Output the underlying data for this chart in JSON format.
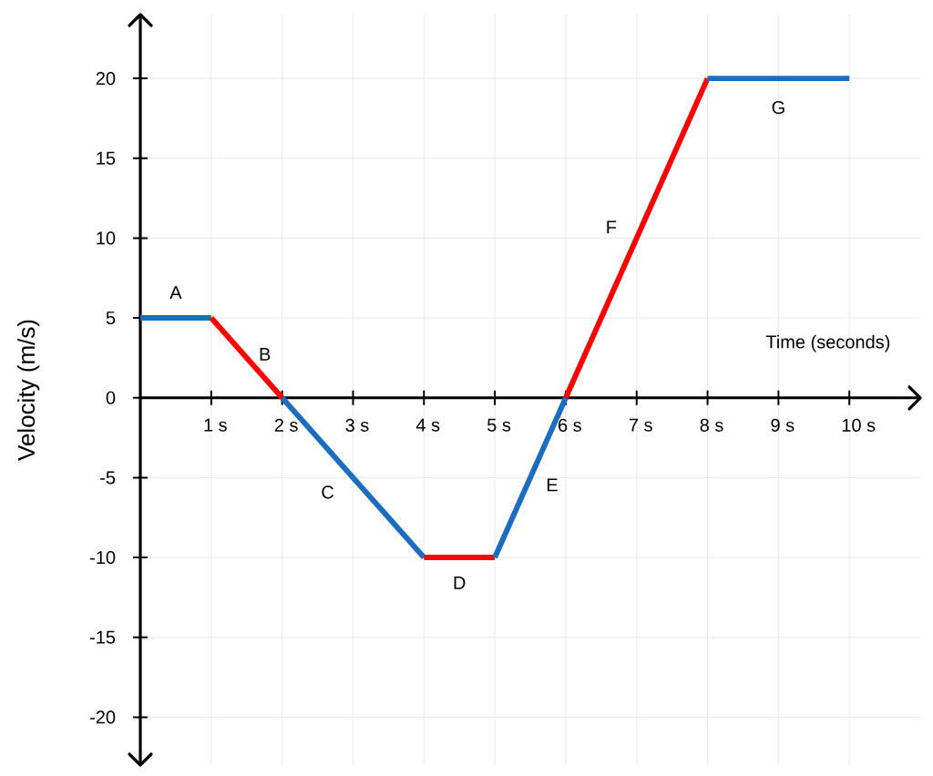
{
  "chart_data": {
    "type": "line",
    "xlabel": "Time (seconds)",
    "ylabel": "Velocity (m/s)",
    "xlim": [
      0,
      11
    ],
    "ylim": [
      -23,
      24
    ],
    "xticks": [
      {
        "value": 1,
        "label": "1 s"
      },
      {
        "value": 2,
        "label": "2 s"
      },
      {
        "value": 3,
        "label": "3 s"
      },
      {
        "value": 4,
        "label": "4 s"
      },
      {
        "value": 5,
        "label": "5 s"
      },
      {
        "value": 6,
        "label": "6 s"
      },
      {
        "value": 7,
        "label": "7 s"
      },
      {
        "value": 8,
        "label": "8 s"
      },
      {
        "value": 9,
        "label": "9 s"
      },
      {
        "value": 10,
        "label": "10 s"
      }
    ],
    "yticks": [
      -20,
      -15,
      -10,
      -5,
      0,
      5,
      10,
      15,
      20
    ],
    "grid": true,
    "series": [
      {
        "color": "#1c6cc0",
        "x": [
          0,
          1
        ],
        "values": [
          5,
          5
        ]
      },
      {
        "color": "#ff0000",
        "x": [
          1,
          2
        ],
        "values": [
          5,
          0
        ]
      },
      {
        "color": "#1c6cc0",
        "x": [
          2,
          4
        ],
        "values": [
          0,
          -10
        ]
      },
      {
        "color": "#ff0000",
        "x": [
          4,
          5
        ],
        "values": [
          -10,
          -10
        ]
      },
      {
        "color": "#1c6cc0",
        "x": [
          5,
          6
        ],
        "values": [
          -10,
          0
        ]
      },
      {
        "color": "#ff0000",
        "x": [
          6,
          8
        ],
        "values": [
          0,
          20
        ]
      },
      {
        "color": "#1c6cc0",
        "x": [
          8,
          10
        ],
        "values": [
          20,
          20
        ]
      }
    ],
    "annotations": [
      "A",
      "B",
      "C",
      "D",
      "E",
      "F",
      "G"
    ]
  }
}
